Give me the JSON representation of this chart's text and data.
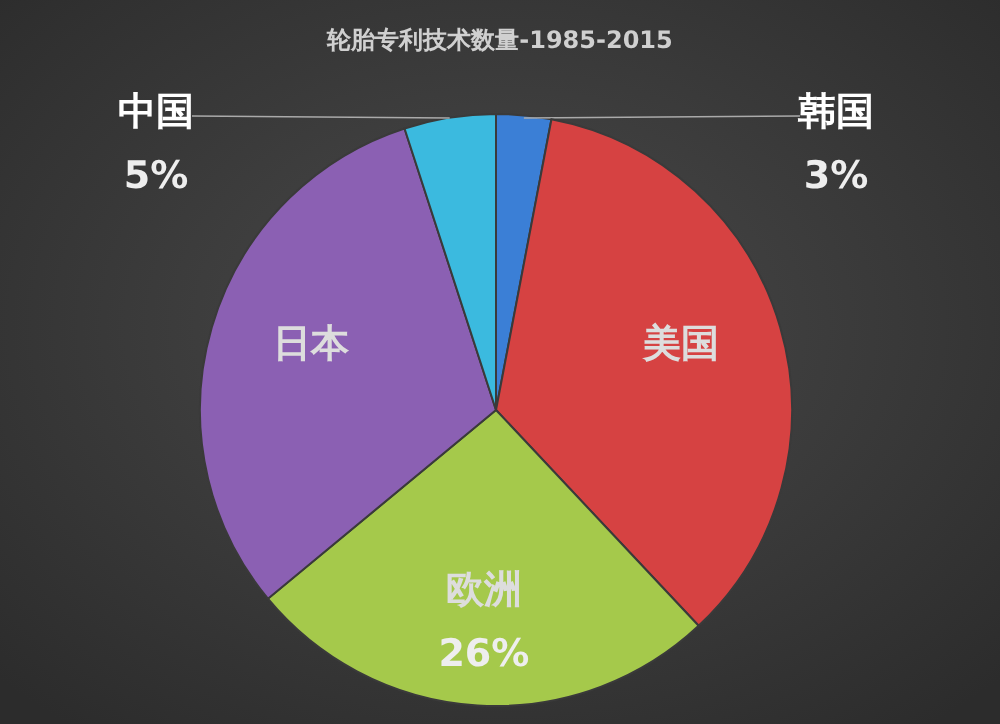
{
  "chart_data": {
    "type": "pie",
    "title": "轮胎专利技术数量-1985-2015",
    "categories": [
      "韩国",
      "美国",
      "欧洲",
      "日本",
      "中国"
    ],
    "values": [
      3,
      35,
      26,
      31,
      5
    ],
    "value_labels": [
      "3%",
      null,
      "26%",
      null,
      "5%"
    ],
    "colors": [
      "#3b7fd6",
      "#d64242",
      "#a5c94b",
      "#8b60b3",
      "#3bbadf"
    ],
    "legend": false
  }
}
